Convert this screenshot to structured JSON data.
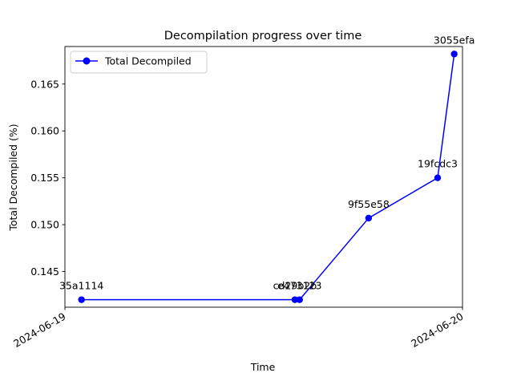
{
  "chart_data": {
    "type": "line",
    "title": "Decompilation progress over time",
    "xlabel": "Time",
    "ylabel": "Total Decompiled (%)",
    "xlim": [
      "2024-06-19T00:00",
      "2024-06-20T00:00"
    ],
    "ylim": [
      0.1412,
      0.169
    ],
    "x_ticks": [
      "2024-06-19",
      "2024-06-20"
    ],
    "y_ticks": [
      0.145,
      0.15,
      0.155,
      0.16,
      0.165
    ],
    "y_tick_labels": [
      "0.145",
      "0.150",
      "0.155",
      "0.160",
      "0.165"
    ],
    "legend_position": "top-left",
    "grid": false,
    "series": [
      {
        "name": "Total Decompiled",
        "color": "#0000ff",
        "points": [
          {
            "x": "2024-06-19T01:00",
            "y": 0.142,
            "label": "35a1114"
          },
          {
            "x": "2024-06-19T13:53",
            "y": 0.142,
            "label": "cd29b2b"
          },
          {
            "x": "2024-06-19T14:10",
            "y": 0.142,
            "label": "e473123"
          },
          {
            "x": "2024-06-19T18:20",
            "y": 0.1507,
            "label": "9f55e58"
          },
          {
            "x": "2024-06-19T22:30",
            "y": 0.155,
            "label": "19fcdc3"
          },
          {
            "x": "2024-06-19T23:30",
            "y": 0.1682,
            "label": "3055efa"
          }
        ]
      }
    ]
  }
}
